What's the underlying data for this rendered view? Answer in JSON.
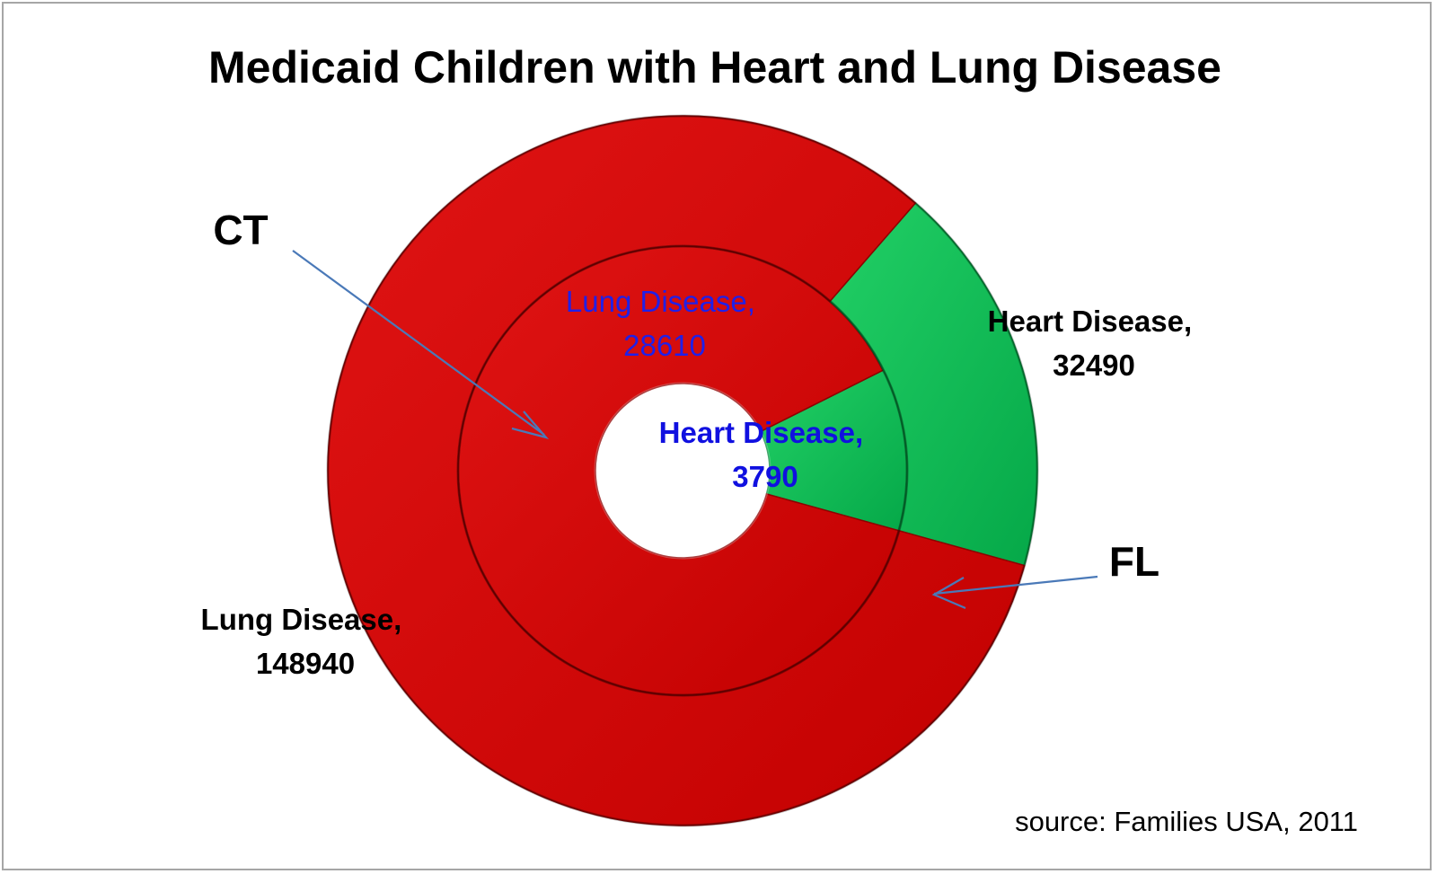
{
  "chart_data": {
    "type": "pie",
    "variant": "concentric-donut",
    "title": "Medicaid Children with Heart and Lung Disease",
    "source": "source: Families USA, 2011",
    "categories": [
      "Heart Disease",
      "Lung Disease"
    ],
    "colors": {
      "Heart Disease": "#0cba52",
      "Lung Disease": "#d20505"
    },
    "rings": [
      {
        "name": "CT",
        "position": "inner",
        "slices": [
          {
            "label": "Heart Disease",
            "value": 3790,
            "display": [
              "Heart Disease,",
              "3790"
            ]
          },
          {
            "label": "Lung Disease",
            "value": 28610,
            "display": [
              "Lung Disease,",
              "28610"
            ]
          }
        ]
      },
      {
        "name": "FL",
        "position": "outer",
        "slices": [
          {
            "label": "Heart Disease",
            "value": 32490,
            "display": [
              "Heart Disease,",
              "32490"
            ]
          },
          {
            "label": "Lung Disease",
            "value": 148940,
            "display": [
              "Lung Disease,",
              "148940"
            ]
          }
        ]
      }
    ]
  }
}
